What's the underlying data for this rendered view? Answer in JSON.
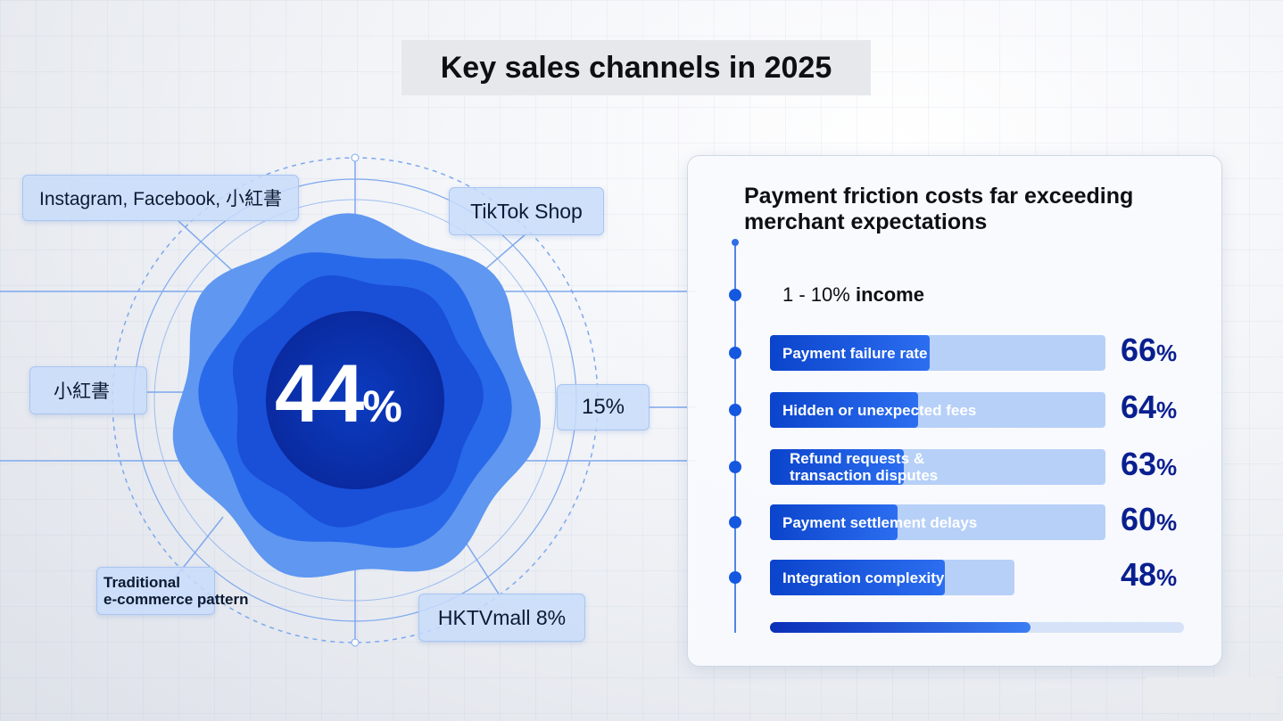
{
  "title": "Key sales channels in 2025",
  "chart_data": [
    {
      "type": "radial",
      "center_value": "44",
      "center_unit": "%",
      "labels": [
        "Instagram, Facebook, 小紅書",
        "TikTok Shop",
        "小紅書",
        "15%",
        "Traditional",
        "e-commerce pattern",
        "HKTVmall 8%"
      ],
      "center_value_num": 44,
      "colors": {
        "outer_ring": "#5f97f1",
        "middle_ring": "#2869ea",
        "core": "#0b3cc0"
      }
    },
    {
      "type": "bar",
      "title_line1": "Payment friction costs far exceeding",
      "title_line2": "merchant expectations",
      "header_range": "1 - 10%",
      "header_word": "income",
      "categories": [
        [
          "Payment failure rate"
        ],
        [
          "Hidden or unexpected fees"
        ],
        [
          "Refund requests &",
          "transaction disputes"
        ],
        [
          "Payment settlement delays"
        ],
        [
          "Integration complexity"
        ]
      ],
      "values": [
        66,
        64,
        63,
        60,
        48
      ],
      "value_labels": [
        "66",
        "64",
        "63",
        "60",
        "48"
      ],
      "unit": "%",
      "colors": {
        "bar": "#1458e0",
        "track": "#b7d0f8",
        "value_text": "#0a1f8f"
      }
    }
  ]
}
